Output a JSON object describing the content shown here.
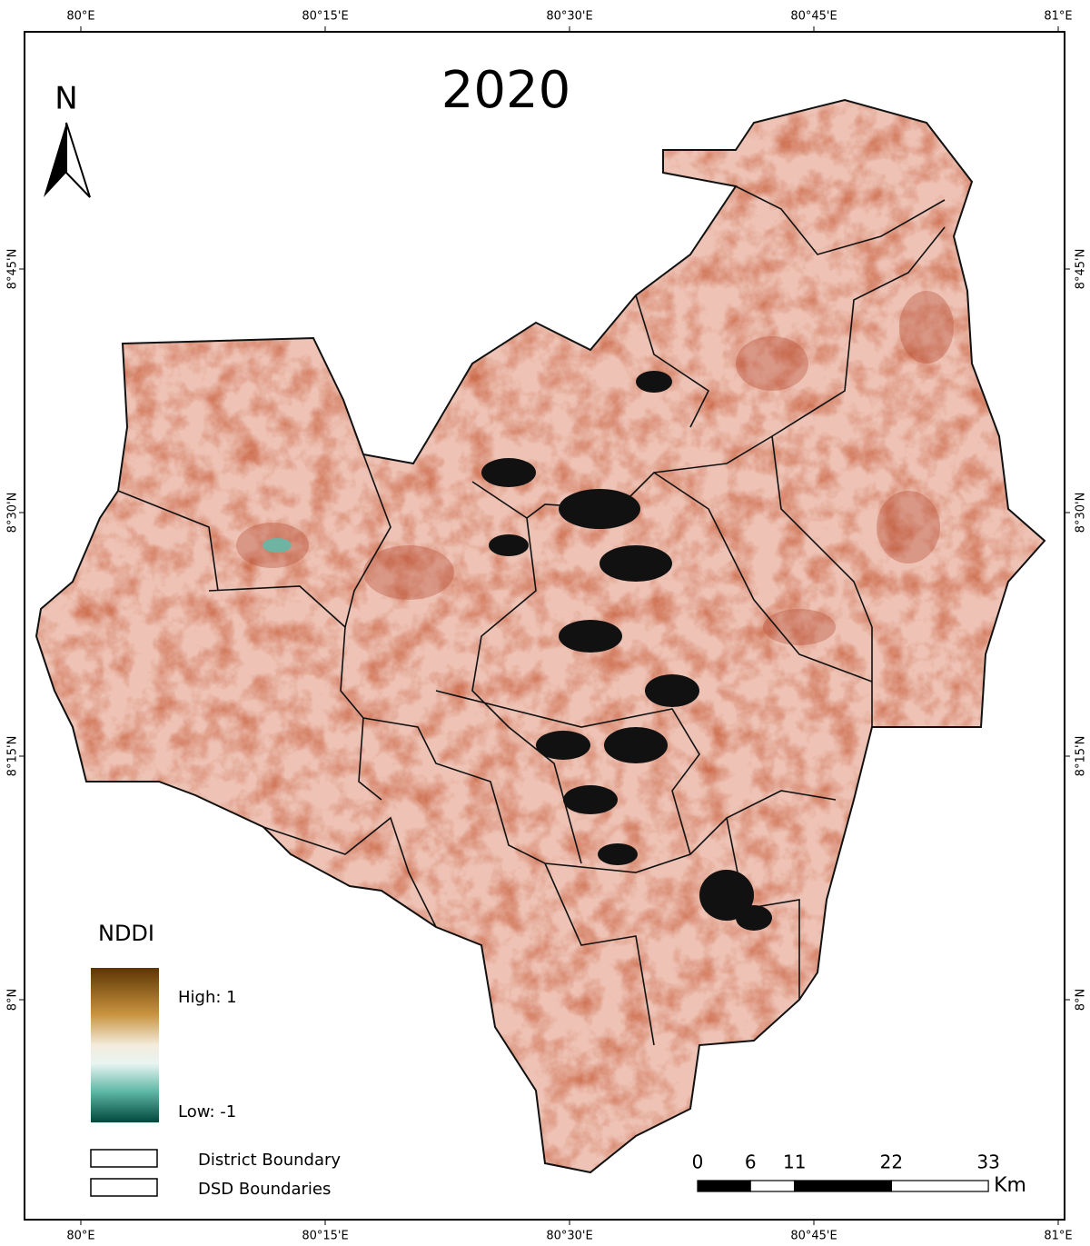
{
  "title": "2020",
  "north_arrow": "N",
  "graticule": {
    "longitude": [
      {
        "value": 80,
        "label": "80°E"
      },
      {
        "value": 80.25,
        "label": "80°15'E"
      },
      {
        "value": 80.5,
        "label": "80°30'E"
      },
      {
        "value": 80.75,
        "label": "80°45'E"
      },
      {
        "value": 81,
        "label": "81°E"
      }
    ],
    "latitude": [
      {
        "value": 8.75,
        "label": "8°45'N"
      },
      {
        "value": 8.5,
        "label": "8°30'N"
      },
      {
        "value": 8.25,
        "label": "8°15'N"
      },
      {
        "value": 8,
        "label": "8°N"
      }
    ]
  },
  "legend": {
    "title": "NDDI",
    "high": "High: 1",
    "low": "Low: -1",
    "items": [
      "District Boundary",
      "DSD Boundaries"
    ]
  },
  "scale_bar": {
    "ticks": [
      0,
      6,
      11,
      22,
      33
    ],
    "unit": "Km"
  }
}
